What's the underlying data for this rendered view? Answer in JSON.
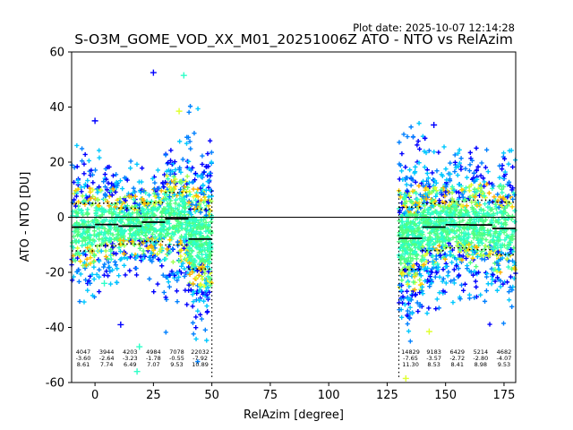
{
  "chart_data": {
    "type": "scatter",
    "title": "S-O3M_GOME_VOD_XX_M01_20251006Z ATO - NTO vs RelAzim",
    "plot_date": "Plot date: 2025-10-07 12:14:28",
    "xlabel": "RelAzim [degree]",
    "ylabel": "ATO - NTO [DU]",
    "xlim": [
      -10,
      180
    ],
    "ylim": [
      -60,
      60
    ],
    "xticks": [
      0,
      25,
      50,
      75,
      100,
      125,
      150,
      175
    ],
    "yticks": [
      -60,
      -40,
      -20,
      0,
      20,
      40,
      60
    ],
    "zero_line": 0,
    "marker": "+",
    "colors": [
      "#0000ff",
      "#0080ff",
      "#00c8ff",
      "#2effc8",
      "#50ff80",
      "#a0ff50",
      "#e0ff30",
      "#ffd000",
      "#ffb000"
    ],
    "bins": [
      {
        "x0": -10,
        "x1": 0,
        "count": "4047",
        "mean": -3.6,
        "std": 8.61,
        "mean_label": "-3.60",
        "std_label": "8.61"
      },
      {
        "x0": 0,
        "x1": 10,
        "count": "3944",
        "mean": -2.64,
        "std": 7.74,
        "mean_label": "-2.64",
        "std_label": "7.74"
      },
      {
        "x0": 10,
        "x1": 20,
        "count": "4203",
        "mean": -3.23,
        "std": 6.49,
        "mean_label": "-3.23",
        "std_label": "6.49"
      },
      {
        "x0": 20,
        "x1": 30,
        "count": "4984",
        "mean": -1.78,
        "std": 7.07,
        "mean_label": "-1.78",
        "std_label": "7.07"
      },
      {
        "x0": 30,
        "x1": 40,
        "count": "7078",
        "mean": -0.55,
        "std": 9.53,
        "mean_label": "-0.55",
        "std_label": "9.53"
      },
      {
        "x0": 40,
        "x1": 50,
        "count": "22032",
        "mean": -7.92,
        "std": 10.89,
        "mean_label": "-7.92",
        "std_label": "10.89"
      },
      {
        "x0": 130,
        "x1": 140,
        "count": "14829",
        "mean": -7.65,
        "std": 11.3,
        "mean_label": "-7.65",
        "std_label": "11.30"
      },
      {
        "x0": 140,
        "x1": 150,
        "count": "9183",
        "mean": -3.57,
        "std": 8.53,
        "mean_label": "-3.57",
        "std_label": "8.53"
      },
      {
        "x0": 150,
        "x1": 160,
        "count": "6429",
        "mean": -2.72,
        "std": 8.41,
        "mean_label": "-2.72",
        "std_label": "8.41"
      },
      {
        "x0": 160,
        "x1": 170,
        "count": "5214",
        "mean": -2.8,
        "std": 8.98,
        "mean_label": "-2.80",
        "std_label": "8.98"
      },
      {
        "x0": 170,
        "x1": 180,
        "count": "4682",
        "mean": -4.07,
        "std": 9.53,
        "mean_label": "-4.07",
        "std_label": "9.53"
      }
    ],
    "outliers": [
      {
        "x": 25,
        "y": 52.5
      },
      {
        "x": 38,
        "y": 51.5
      },
      {
        "x": 36,
        "y": 38.5
      },
      {
        "x": 11,
        "y": -39
      },
      {
        "x": 18,
        "y": -56
      },
      {
        "x": 133,
        "y": -58.5
      },
      {
        "x": 145,
        "y": 33.5
      },
      {
        "x": 4,
        "y": -24
      },
      {
        "x": 143,
        "y": -41.5
      },
      {
        "x": 0,
        "y": 35
      },
      {
        "x": 19,
        "y": -47
      }
    ]
  }
}
